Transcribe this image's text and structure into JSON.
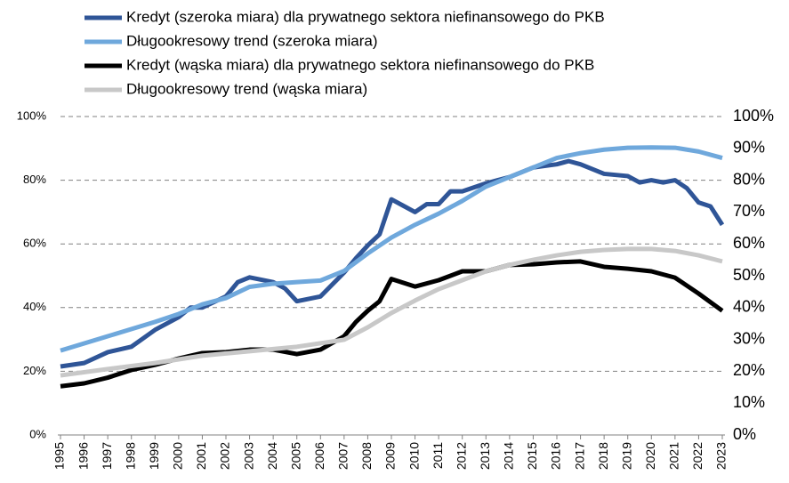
{
  "chart_data": {
    "type": "line",
    "series": [
      {
        "name": "Kredyt (szeroka miara) dla prywatnego sektora niefinansowego do PKB",
        "color": "#2f5597",
        "x": [
          1995,
          1996,
          1997,
          1998,
          1999,
          2000,
          2000.5,
          2001,
          2002,
          2002.5,
          2003,
          2004,
          2004.5,
          2005,
          2006,
          2007,
          2007.5,
          2008,
          2008.5,
          2009,
          2009.5,
          2010,
          2010.5,
          2011,
          2011.5,
          2012,
          2013,
          2013.5,
          2014,
          2015,
          2016,
          2016.5,
          2017,
          2017.5,
          2018,
          2019,
          2019.5,
          2020,
          2020.5,
          2021,
          2021.5,
          2022,
          2022.5,
          2023
        ],
        "values": [
          21.5,
          22.6,
          26,
          27.7,
          33,
          37,
          40,
          40,
          43.5,
          48,
          49.5,
          48,
          46,
          42,
          43.5,
          51,
          55.5,
          59.5,
          63,
          74,
          72,
          70,
          72.5,
          72.5,
          76.5,
          76.5,
          79,
          80,
          81,
          84,
          85,
          86,
          85,
          83.5,
          82,
          81.3,
          79.3,
          80,
          79.3,
          80,
          77.5,
          73,
          71.8,
          66
        ]
      },
      {
        "name": "Długookresowy trend (szeroka miara)",
        "color": "#6fa8dc",
        "x": [
          1995,
          1997,
          1999,
          2000,
          2001,
          2002,
          2003,
          2004,
          2005,
          2006,
          2007,
          2008,
          2009,
          2010,
          2011,
          2012,
          2013,
          2014,
          2015,
          2016,
          2017,
          2018,
          2019,
          2020,
          2021,
          2022,
          2023
        ],
        "values": [
          26.5,
          31,
          35.5,
          38,
          41,
          43,
          46.5,
          47.5,
          48,
          48.5,
          51.5,
          57,
          62,
          66,
          69.5,
          73.5,
          78,
          81,
          84,
          87,
          88.5,
          89.6,
          90.2,
          90.3,
          90.2,
          89,
          87
        ]
      },
      {
        "name": "Kredyt (wąska miara) dla prywatnego sektora niefinansowego do PKB",
        "color": "#000000",
        "x": [
          1995,
          1996,
          1997,
          1998,
          1999,
          2000,
          2001,
          2002,
          2003,
          2004,
          2005,
          2006,
          2007,
          2007.5,
          2008,
          2008.5,
          2009,
          2010,
          2011,
          2012,
          2013,
          2014,
          2015,
          2016,
          2017,
          2018,
          2019,
          2020,
          2021,
          2022,
          2023
        ],
        "values": [
          15.3,
          16.2,
          18,
          20.4,
          22,
          24,
          25.7,
          26,
          26.8,
          26.8,
          25.4,
          26.8,
          31,
          35.5,
          39,
          42,
          49,
          46.6,
          48.6,
          51.4,
          51.4,
          53.4,
          53.6,
          54.2,
          54.5,
          52.8,
          52.2,
          51.4,
          49.4,
          44.4,
          39
        ]
      },
      {
        "name": "Długookresowy trend (wąska miara)",
        "color": "#c8c8c8",
        "x": [
          1995,
          1997,
          1999,
          2001,
          2003,
          2005,
          2007,
          2008,
          2009,
          2010,
          2011,
          2012,
          2013,
          2014,
          2015,
          2016,
          2017,
          2018,
          2019,
          2020,
          2021,
          2022,
          2023
        ],
        "values": [
          18.7,
          20.7,
          22.6,
          24.9,
          26.3,
          27.7,
          29.9,
          33.8,
          38.3,
          42.2,
          45.8,
          48.6,
          51.4,
          53.4,
          55,
          56.4,
          57.5,
          58.1,
          58.4,
          58.4,
          57.8,
          56.4,
          54.5
        ]
      }
    ],
    "xlim": [
      1995,
      2023
    ],
    "xticks": [
      1995,
      1996,
      1997,
      1998,
      1999,
      2000,
      2001,
      2002,
      2003,
      2004,
      2005,
      2006,
      2007,
      2008,
      2009,
      2010,
      2011,
      2012,
      2013,
      2014,
      2015,
      2016,
      2017,
      2018,
      2019,
      2020,
      2021,
      2022,
      2023
    ],
    "ylim": [
      0,
      100
    ],
    "yticks": [
      {
        "value": 0,
        "label": "0%"
      },
      {
        "value": 20,
        "label": "20%"
      },
      {
        "value": 40,
        "label": "40%"
      },
      {
        "value": 60,
        "label": "60%"
      },
      {
        "value": 80,
        "label": "80%"
      },
      {
        "value": 100,
        "label": "100%"
      }
    ],
    "y2lim": [
      0,
      100
    ],
    "y2ticks": [
      {
        "value": 0,
        "label": "0%"
      },
      {
        "value": 10,
        "label": "10%"
      },
      {
        "value": 20,
        "label": "20%"
      },
      {
        "value": 30,
        "label": "30%"
      },
      {
        "value": 40,
        "label": "40%"
      },
      {
        "value": 50,
        "label": "50%"
      },
      {
        "value": 60,
        "label": "60%"
      },
      {
        "value": 70,
        "label": "70%"
      },
      {
        "value": 80,
        "label": "80%"
      },
      {
        "value": 90,
        "label": "90%"
      },
      {
        "value": 100,
        "label": "100%"
      }
    ],
    "grid": true,
    "legend": "top"
  }
}
